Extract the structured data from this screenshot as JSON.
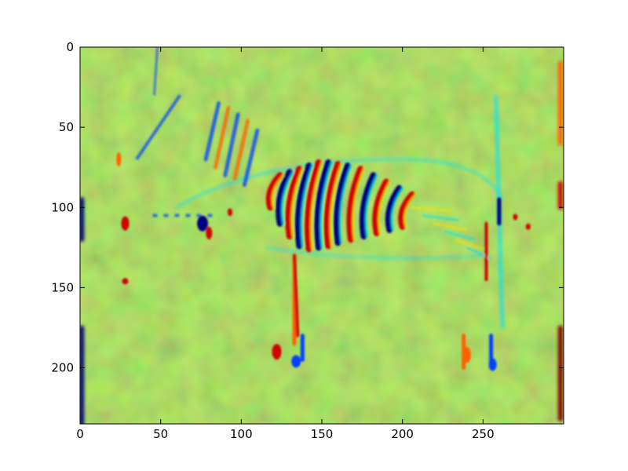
{
  "chart_data": {
    "type": "heatmap",
    "description": "Filtered-image heatmap of a zebra (jet colormap)",
    "title": "",
    "xlabel": "",
    "ylabel": "",
    "xlim": [
      0,
      300
    ],
    "ylim": [
      235,
      0
    ],
    "x_ticks": [
      0,
      50,
      100,
      150,
      200,
      250
    ],
    "y_ticks": [
      0,
      50,
      100,
      150,
      200
    ],
    "colormap": "jet",
    "background_value_color": "#a8e86a",
    "colors": {
      "dark_blue": "#00007f",
      "blue": "#0040ff",
      "cyan": "#00e0ff",
      "green": "#a8e86a",
      "yellow": "#ffe000",
      "orange": "#ff6000",
      "red": "#d00000",
      "dark_red": "#7f0000"
    },
    "stripes": [
      {
        "x": 118,
        "y1": 100,
        "y2": 80
      },
      {
        "x": 124,
        "y1": 110,
        "y2": 78
      },
      {
        "x": 130,
        "y1": 118,
        "y2": 76
      },
      {
        "x": 136,
        "y1": 124,
        "y2": 74
      },
      {
        "x": 142,
        "y1": 126,
        "y2": 72
      },
      {
        "x": 148,
        "y1": 125,
        "y2": 72
      },
      {
        "x": 154,
        "y1": 124,
        "y2": 73
      },
      {
        "x": 160,
        "y1": 122,
        "y2": 74
      },
      {
        "x": 168,
        "y1": 120,
        "y2": 76
      },
      {
        "x": 176,
        "y1": 118,
        "y2": 80
      },
      {
        "x": 184,
        "y1": 116,
        "y2": 84
      },
      {
        "x": 192,
        "y1": 114,
        "y2": 88
      },
      {
        "x": 200,
        "y1": 112,
        "y2": 92
      }
    ],
    "neck_stripes": [
      {
        "x": 78,
        "y1": 70,
        "y2": 35
      },
      {
        "x": 84,
        "y1": 75,
        "y2": 38
      },
      {
        "x": 90,
        "y1": 80,
        "y2": 42
      },
      {
        "x": 96,
        "y1": 82,
        "y2": 46
      },
      {
        "x": 102,
        "y1": 86,
        "y2": 52
      }
    ],
    "legs": [
      {
        "x": 133,
        "y1": 130,
        "y2": 185
      },
      {
        "x": 138,
        "y1": 180,
        "y2": 195
      },
      {
        "x": 238,
        "y1": 180,
        "y2": 200
      },
      {
        "x": 255,
        "y1": 180,
        "y2": 200
      }
    ]
  }
}
